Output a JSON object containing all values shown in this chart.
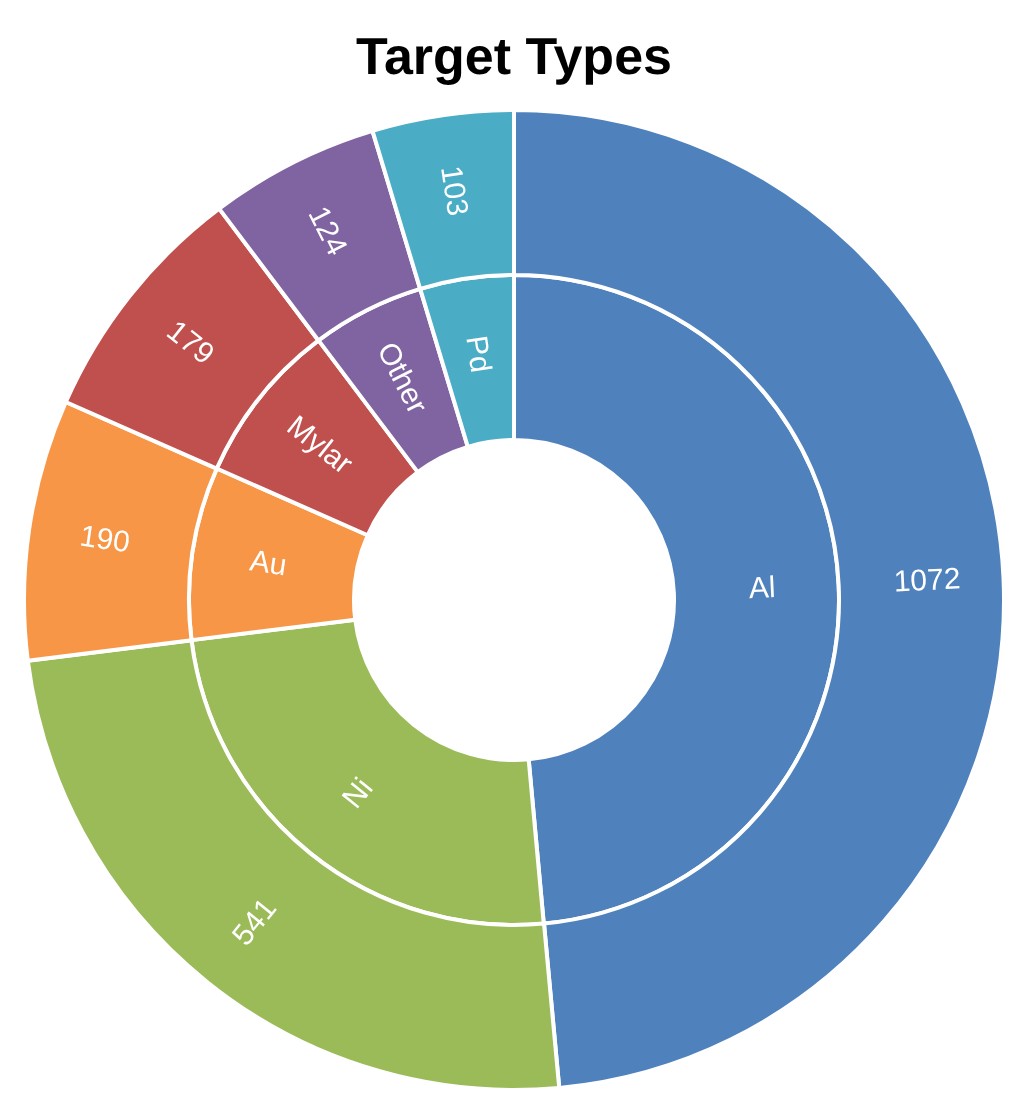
{
  "chart_data": {
    "type": "donut",
    "title": "Target Types",
    "categories": [
      "Al",
      "Ni",
      "Au",
      "Mylar",
      "Other",
      "Pd"
    ],
    "colors": [
      "#4f81bd",
      "#9bbb59",
      "#f79646",
      "#c0504d",
      "#8064a2",
      "#4bacc6"
    ],
    "series": [
      {
        "values": [
          48.54,
          24.49,
          8.6,
          8.1,
          5.61,
          4.66
        ]
      },
      {
        "values": [
          1072,
          541,
          190,
          179,
          124,
          103
        ],
        "data_labels": true
      }
    ],
    "legend": false
  }
}
